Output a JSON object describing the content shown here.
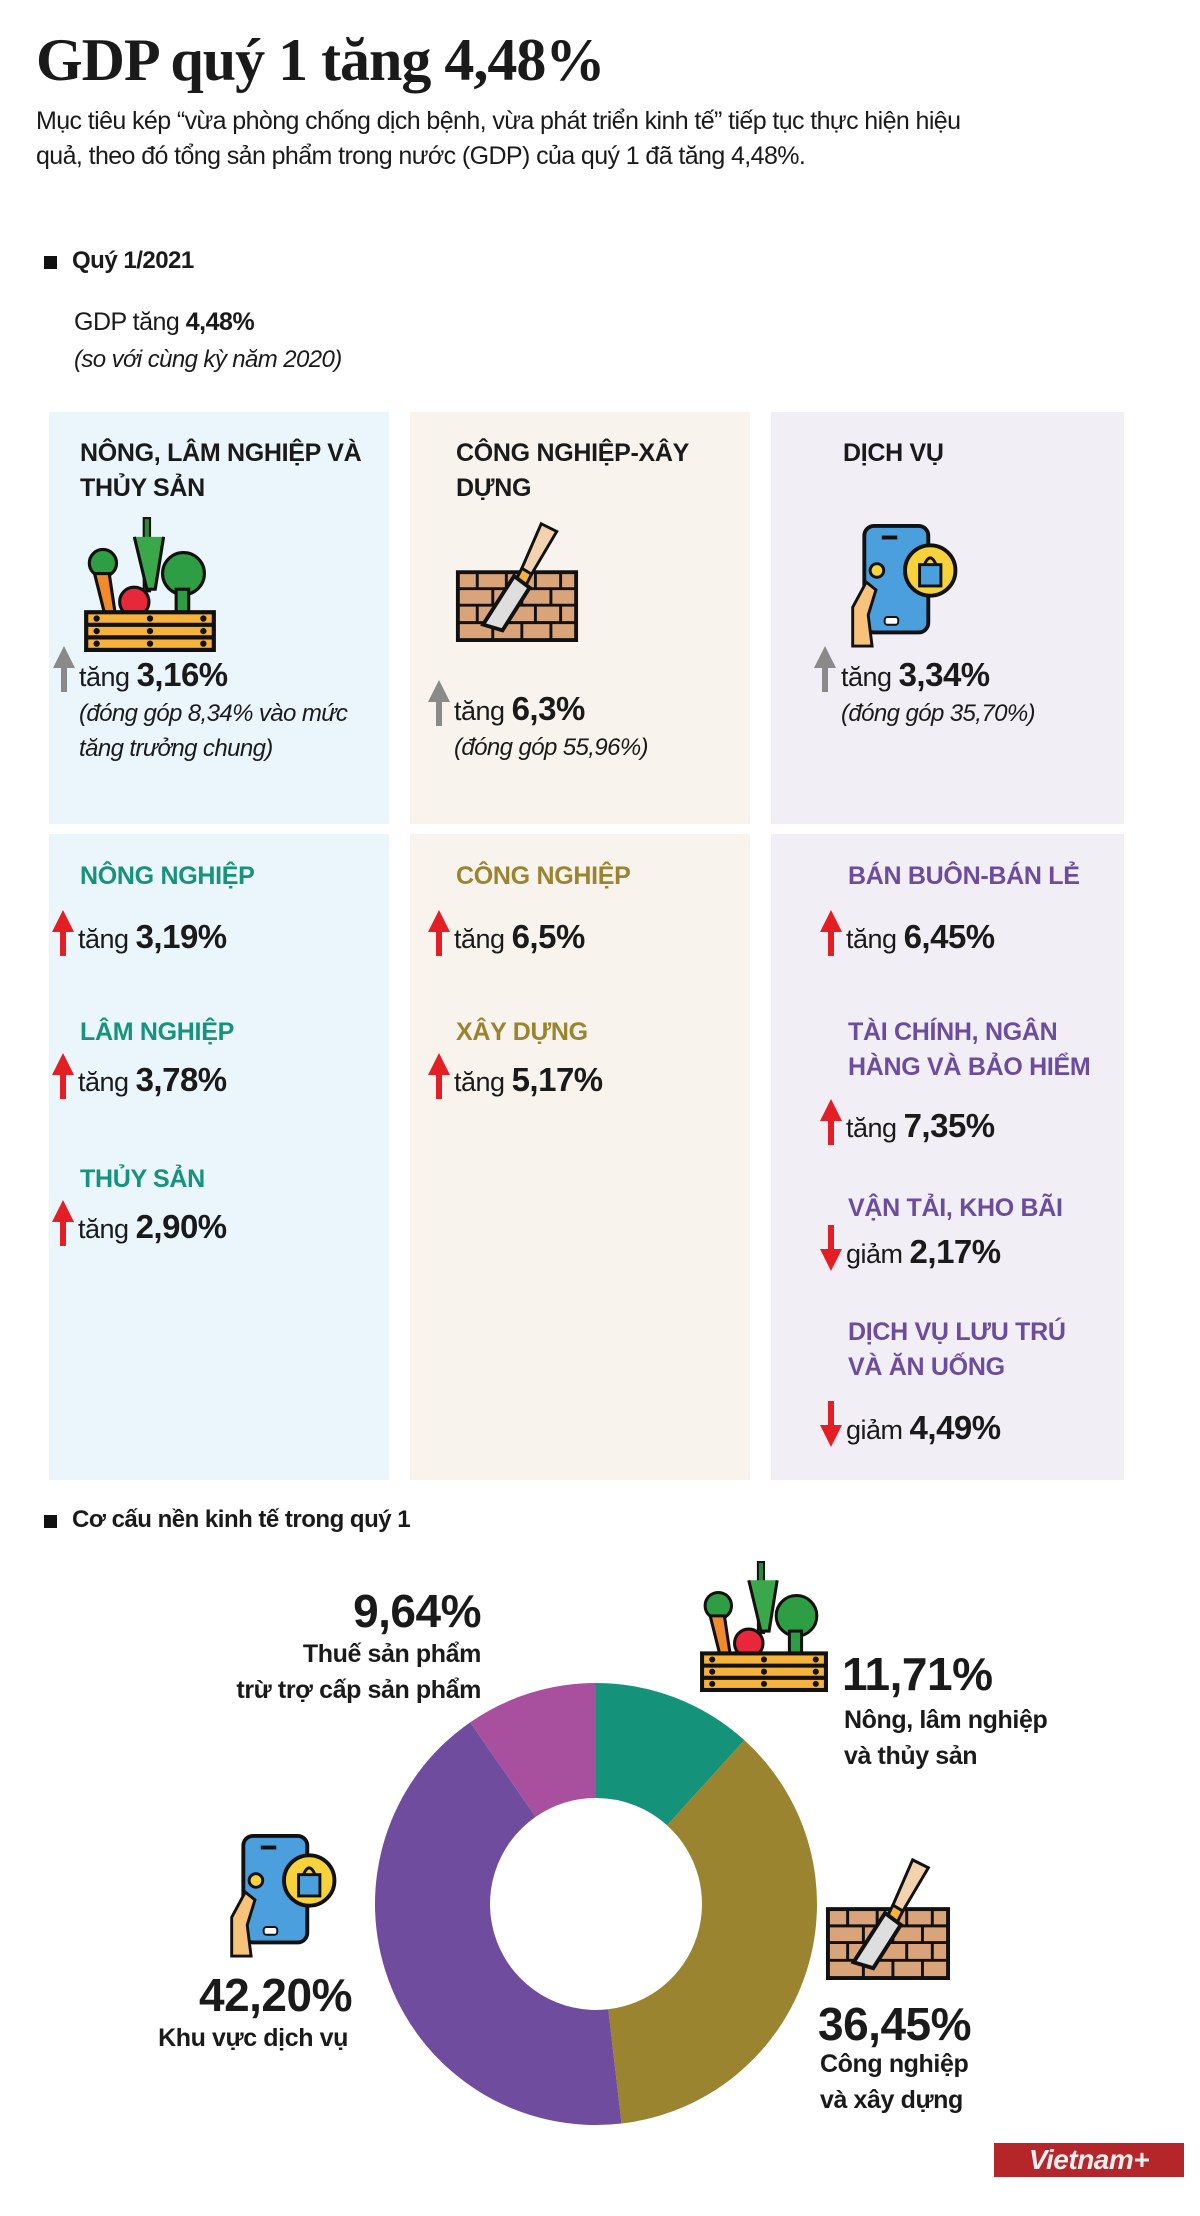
{
  "header": {
    "title": "GDP quý 1 tăng 4,48%",
    "intro": "Mục tiêu kép “vừa phòng chống dịch bệnh, vừa phát triển kinh tế” tiếp tục thực hiện hiệu quả, theo đó tổng sản phẩm trong nước (GDP) của quý 1 đã tăng 4,48%."
  },
  "quarter": {
    "heading": "Quý 1/2021",
    "gdp_prefix": "GDP tăng",
    "gdp_value": "4,48%",
    "comparison": "(so với cùng kỳ năm 2020)"
  },
  "sectors": [
    {
      "title": "NÔNG, LÂM NGHIỆP VÀ THỦY SẢN",
      "icon": "vegetable-crate-icon",
      "direction": "up",
      "verb": "tăng",
      "value": "3,16%",
      "note": "(đóng góp 8,34% vào mức tăng trưởng chung)",
      "color": "#16937a",
      "background": "#eaf5fc",
      "subsectors": [
        {
          "name": "NÔNG NGHIỆP",
          "direction": "up",
          "verb": "tăng",
          "value": "3,19%"
        },
        {
          "name": "LÂM NGHIỆP",
          "direction": "up",
          "verb": "tăng",
          "value": "3,78%"
        },
        {
          "name": "THỦY SẢN",
          "direction": "up",
          "verb": "tăng",
          "value": "2,90%"
        }
      ]
    },
    {
      "title": "CÔNG NGHIỆP-XÂY DỰNG",
      "icon": "trowel-brick-icon",
      "direction": "up",
      "verb": "tăng",
      "value": "6,3%",
      "note": "(đóng góp 55,96%)",
      "color": "#9a8430",
      "background": "#f8f4ed",
      "subsectors": [
        {
          "name": "CÔNG NGHIỆP",
          "direction": "up",
          "verb": "tăng",
          "value": "6,5%"
        },
        {
          "name": "XÂY DỰNG",
          "direction": "up",
          "verb": "tăng",
          "value": "5,17%"
        }
      ]
    },
    {
      "title": "DỊCH VỤ",
      "icon": "phone-shopping-icon",
      "direction": "up",
      "verb": "tăng",
      "value": "3,34%",
      "note": "(đóng góp 35,70%)",
      "color": "#6c4c9e",
      "background": "#f1eef5",
      "subsectors": [
        {
          "name": "BÁN BUÔN-BÁN LẺ",
          "direction": "up",
          "verb": "tăng",
          "value": "6,45%"
        },
        {
          "name": "TÀI CHÍNH, NGÂN HÀNG VÀ BẢO HIỂM",
          "direction": "up",
          "verb": "tăng",
          "value": "7,35%"
        },
        {
          "name": "VẬN TẢI, KHO BÃI",
          "direction": "down",
          "verb": "giảm",
          "value": "2,17%"
        },
        {
          "name": "DỊCH VỤ LƯU TRÚ VÀ ĂN UỐNG",
          "direction": "down",
          "verb": "giảm",
          "value": "4,49%"
        }
      ]
    }
  ],
  "structure": {
    "heading": "Cơ cấu nền kinh tế trong quý 1"
  },
  "chart_data": {
    "type": "pie",
    "variant": "donut",
    "title": "",
    "start": "top, clockwise",
    "slices": [
      {
        "label_line1": "Nông, lâm nghiệp",
        "label_line2": "và thủy sản",
        "value": 11.71,
        "display": "11,71%",
        "color": "#14937a",
        "icon": "vegetable-crate-icon"
      },
      {
        "label_line1": "Công nghiệp",
        "label_line2": "và xây dựng",
        "value": 36.45,
        "display": "36,45%",
        "color": "#9a8430",
        "icon": "trowel-brick-icon"
      },
      {
        "label_line1": "Khu vực dịch vụ",
        "label_line2": "",
        "value": 42.2,
        "display": "42,20%",
        "color": "#6f4c9d",
        "icon": "phone-shopping-icon"
      },
      {
        "label_line1": "Thuế sản phẩm",
        "label_line2": "trừ trợ cấp sản phẩm",
        "value": 9.64,
        "display": "9,64%",
        "color": "#a84f9d"
      }
    ]
  },
  "colors": {
    "up_arrow": "#e31e24",
    "down_arrow": "#e31e24",
    "summary_arrow": "#8a8a8a"
  },
  "footer": {
    "logo_text": "Vietnam+",
    "logo_color": "#b5262b"
  }
}
